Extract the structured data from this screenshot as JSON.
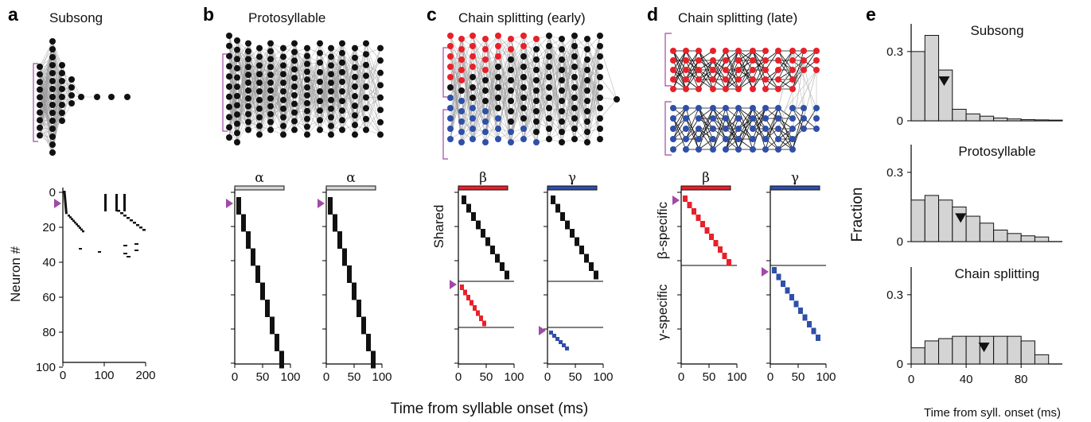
{
  "panels": {
    "a": {
      "letter": "a",
      "title": "Subsong"
    },
    "b": {
      "letter": "b",
      "title": "Protosyllable"
    },
    "c": {
      "letter": "c",
      "title": "Chain splitting (early)"
    },
    "d": {
      "letter": "d",
      "title": "Chain splitting (late)"
    },
    "e": {
      "letter": "e"
    }
  },
  "raster_labels": {
    "neuron_axis": "Neuron #",
    "alpha": "α",
    "beta": "β",
    "gamma": "γ",
    "shared": "Shared",
    "beta_specific": "β-specific",
    "gamma_specific": "γ-specific",
    "common_xlabel": "Time from syllable onset (ms)"
  },
  "colors": {
    "neuron": "#111111",
    "beta": "#e8202a",
    "gamma": "#2f4fa8",
    "seed_marker": "#a04aa8",
    "hist_fill": "#d4d4d4",
    "edge": "#9a9a9a"
  },
  "chart_data": [
    {
      "type": "raster",
      "panel": "a",
      "ylabel": "Neuron #",
      "xlim": [
        0,
        200
      ],
      "ylim": [
        0,
        100
      ],
      "x_ticks": [
        "0",
        "100",
        "200"
      ],
      "y_ticks": [
        "0",
        "20",
        "40",
        "60",
        "80",
        "100"
      ]
    },
    {
      "type": "raster",
      "panel": "b",
      "rasters": [
        {
          "bar_label": "α",
          "xlim": [
            0,
            100
          ],
          "x_ticks": [
            "0",
            "50",
            "100"
          ],
          "neurons": [
            0,
            100
          ],
          "span_ms": [
            0,
            85
          ]
        },
        {
          "bar_label": "α",
          "xlim": [
            0,
            100
          ],
          "x_ticks": [
            "0",
            "50",
            "100"
          ],
          "neurons": [
            0,
            100
          ],
          "span_ms": [
            0,
            85
          ]
        }
      ]
    },
    {
      "type": "raster",
      "panel": "c",
      "rasters": [
        {
          "bar_label": "β",
          "x_ticks": [
            "0",
            "50",
            "100"
          ]
        },
        {
          "bar_label": "γ",
          "x_ticks": [
            "0",
            "50",
            "100"
          ]
        }
      ],
      "row_label": "Shared"
    },
    {
      "type": "raster",
      "panel": "d",
      "rasters": [
        {
          "bar_label": "β",
          "x_ticks": [
            "0",
            "50",
            "100"
          ]
        },
        {
          "bar_label": "γ",
          "x_ticks": [
            "0",
            "50",
            "100"
          ]
        }
      ],
      "row_labels": [
        "β-specific",
        "γ-specific"
      ]
    },
    {
      "type": "bar",
      "panel": "e",
      "xlabel": "Time from syll. onset (ms)",
      "ylabel": "Fraction",
      "xlim": [
        0,
        110
      ],
      "x_ticks": [
        "0",
        "40",
        "80"
      ],
      "y_ticks": [
        "0",
        "0.3"
      ],
      "bin_width_ms": 10,
      "subplots": [
        {
          "title": "Subsong",
          "values": [
            0.3,
            0.37,
            0.22,
            0.05,
            0.03,
            0.02,
            0.012,
            0.008,
            0.005,
            0.004,
            0.003
          ],
          "median_ms": 24
        },
        {
          "title": "Protosyllable",
          "values": [
            0.18,
            0.2,
            0.18,
            0.15,
            0.11,
            0.08,
            0.05,
            0.035,
            0.025,
            0.02
          ],
          "median_ms": 36
        },
        {
          "title": "Chain splitting",
          "values": [
            0.07,
            0.1,
            0.11,
            0.12,
            0.12,
            0.12,
            0.12,
            0.12,
            0.1,
            0.04
          ],
          "median_ms": 53
        }
      ]
    }
  ]
}
